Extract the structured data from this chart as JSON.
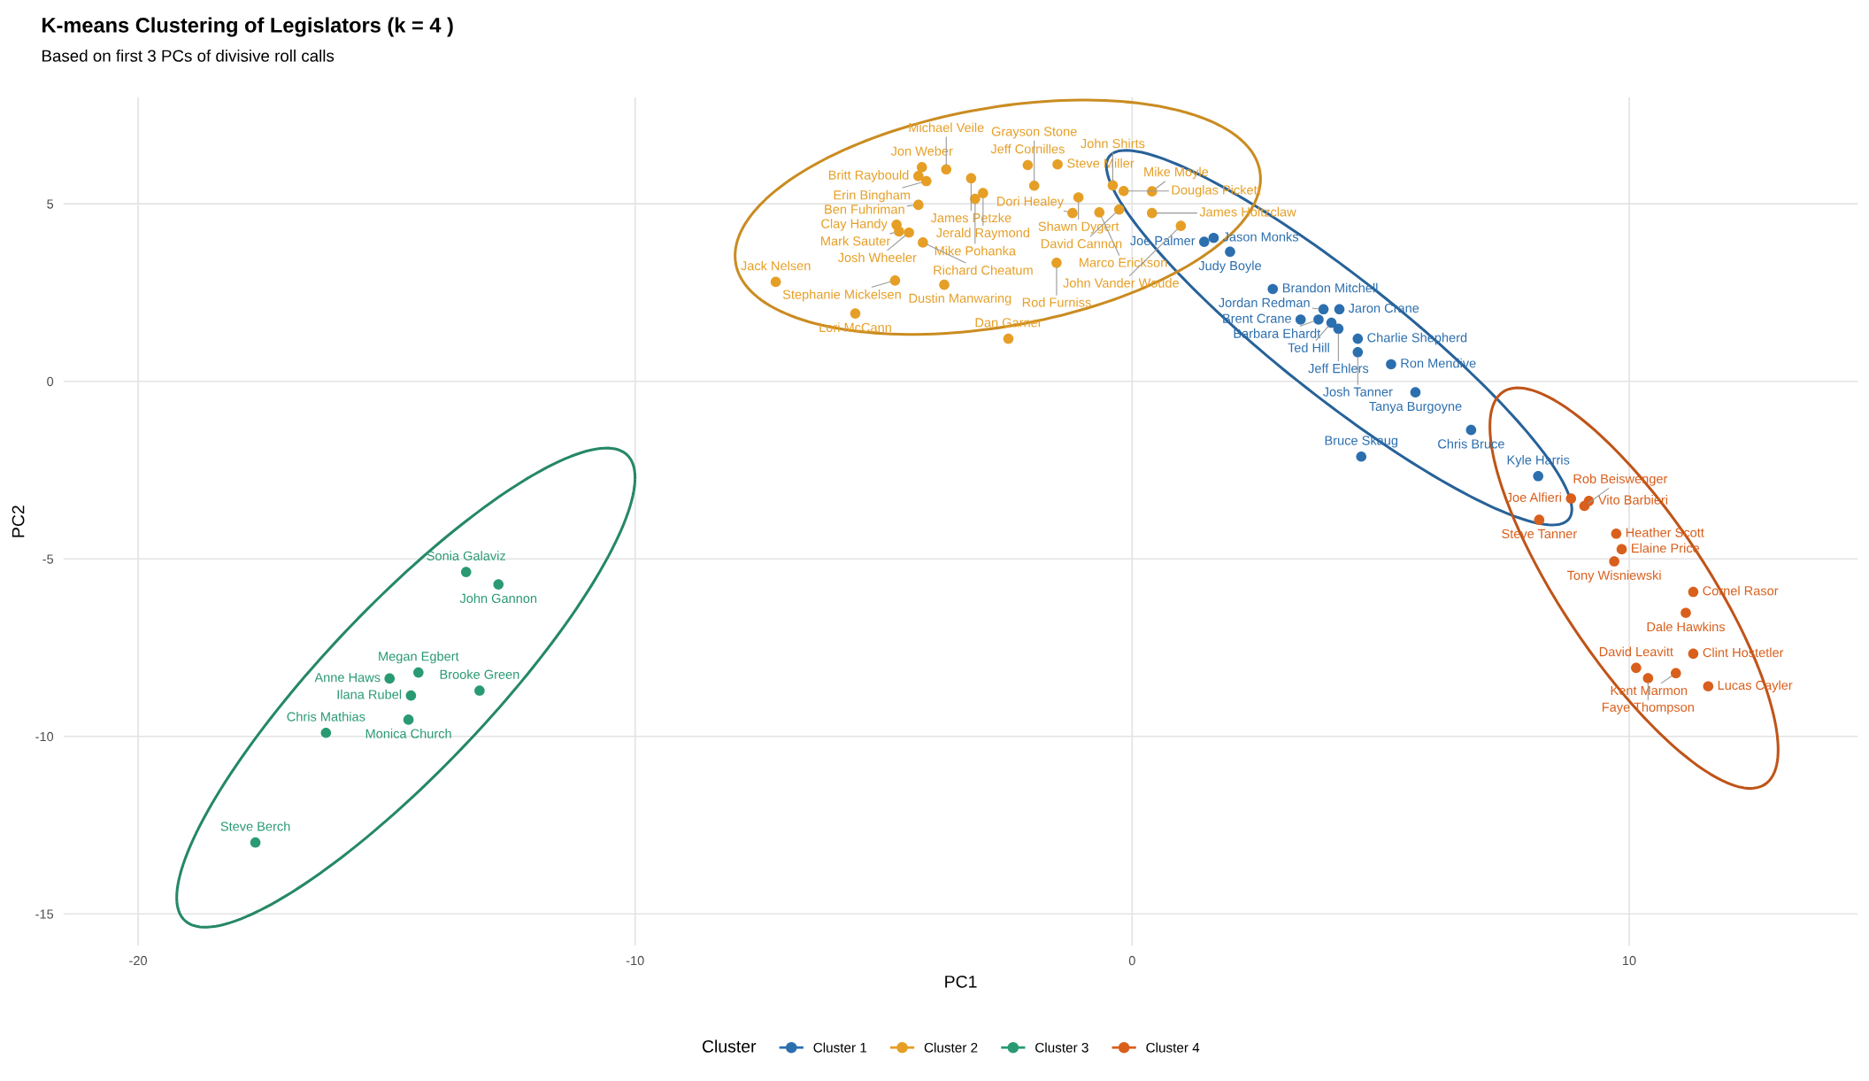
{
  "chart_data": {
    "type": "scatter",
    "title": "K-means Clustering of Legislators (k = 4 )",
    "subtitle": "Based on first 3 PCs of divisive roll calls",
    "xlabel": "PC1",
    "ylabel": "PC2",
    "legend_title": "Cluster",
    "legend": "bottom",
    "marker": "circle",
    "grid": true,
    "xlim": [
      -21.5,
      14.6
    ],
    "ylim": [
      -15.9,
      8.0
    ],
    "xticks": [
      -20,
      -10,
      0,
      10
    ],
    "yticks": [
      -15,
      -10,
      -5,
      0,
      5
    ],
    "series": [
      {
        "name": "Cluster 1",
        "color": "#2c6fae",
        "x": [
          1.64,
          1.45,
          1.97,
          2.83,
          3.85,
          4.17,
          3.39,
          3.75,
          4.01,
          4.15,
          4.54,
          4.54,
          5.21,
          5.7,
          6.82,
          4.61,
          8.17
        ],
        "values": [
          4.04,
          3.93,
          3.65,
          2.6,
          2.03,
          2.03,
          1.74,
          1.74,
          1.65,
          1.48,
          1.2,
          0.82,
          0.48,
          -0.31,
          -1.37,
          -2.12,
          -2.67
        ],
        "value_labels": [
          "Jason Monks",
          "Joe Palmer",
          "Judy Boyle",
          "Brandon Mitchell",
          "Jordan Redman",
          "Jaron Crane",
          "Brent Crane",
          "Barbara Ehardt",
          "Ted Hill",
          "Jeff Ehlers",
          "Charlie Shepherd",
          "Josh Tanner",
          "Ron Mendive",
          "Tanya Burgoyne",
          "Chris Bruce",
          "Bruce Skaug",
          "Kyle Harris"
        ]
      },
      {
        "name": "Cluster 2",
        "color": "#e69f26",
        "x": [
          -4.23,
          -3.74,
          -3.24,
          -4.3,
          -4.14,
          -3.0,
          -3.16,
          -4.3,
          -2.1,
          -1.5,
          -1.97,
          -0.39,
          -0.17,
          0.4,
          -1.08,
          -0.66,
          -0.26,
          0.4,
          0.98,
          -1.2,
          -4.74,
          -4.69,
          -4.49,
          -4.21,
          -7.17,
          -4.77,
          -3.78,
          -1.52,
          -5.57,
          -2.49
        ],
        "values": [
          6.03,
          5.97,
          5.72,
          5.78,
          5.64,
          5.3,
          5.14,
          4.97,
          6.09,
          6.11,
          5.51,
          5.52,
          5.36,
          5.35,
          5.18,
          4.76,
          4.84,
          4.74,
          4.38,
          4.74,
          4.41,
          4.22,
          4.19,
          3.91,
          2.8,
          2.84,
          2.72,
          3.34,
          1.91,
          1.2
        ],
        "value_labels": [
          "Jon Weber",
          "Michael Veile",
          "James Petzke",
          "Britt Raybould",
          "Erin Bingham",
          "Jerald Raymond",
          "Mike Pohanka",
          "Ben Fuhriman",
          "Jeff Cornilles",
          "Steve Miller",
          "Grayson Stone",
          "John Shirts",
          "Douglas Pickett",
          "Mike Moyle",
          "Shawn Dygert",
          "Marco Erickson",
          "David Cannon",
          "James Holtzclaw",
          "John Vander Woude",
          "Dori Healey",
          "Clay Handy",
          "Mark Sauter",
          "Josh Wheeler",
          "Richard Cheatum",
          "Jack Nelsen",
          "Stephanie Mickelsen",
          "Dustin Manwaring",
          "Rod Furniss",
          "Lori McCann",
          "Dan Garner"
        ]
      },
      {
        "name": "Cluster 3",
        "color": "#2a9a72",
        "x": [
          -13.4,
          -12.75,
          -14.36,
          -14.94,
          -14.51,
          -13.13,
          -14.56,
          -16.22,
          -17.64
        ],
        "values": [
          -5.37,
          -5.72,
          -8.2,
          -8.37,
          -8.85,
          -8.71,
          -9.53,
          -9.9,
          -12.99
        ],
        "value_labels": [
          "Sonia Galaviz",
          "John Gannon",
          "Megan Egbert",
          "Anne Haws",
          "Ilana Rubel",
          "Brooke Green",
          "Monica Church",
          "Chris Mathias",
          "Steve Berch"
        ]
      },
      {
        "name": "Cluster 4",
        "color": "#d95f1c",
        "x": [
          8.83,
          9.19,
          9.1,
          8.19,
          9.74,
          9.85,
          9.7,
          11.29,
          11.14,
          11.29,
          10.14,
          10.94,
          10.38,
          11.59
        ],
        "values": [
          -3.3,
          -3.37,
          -3.51,
          -3.9,
          -4.29,
          -4.73,
          -5.07,
          -5.93,
          -6.52,
          -7.67,
          -8.07,
          -8.22,
          -8.36,
          -8.59
        ],
        "value_labels": [
          "Joe Alfieri",
          "Vito Barbieri",
          "Rob Beiswenger",
          "Steve Tanner",
          "Heather Scott",
          "Elaine Price",
          "Tony Wisniewski",
          "Cornel Rasor",
          "Dale Hawkins",
          "Clint Hostetler",
          "David Leavitt",
          "Kent Marmon",
          "Faye Thompson",
          "Lucas Cayler"
        ]
      }
    ]
  }
}
